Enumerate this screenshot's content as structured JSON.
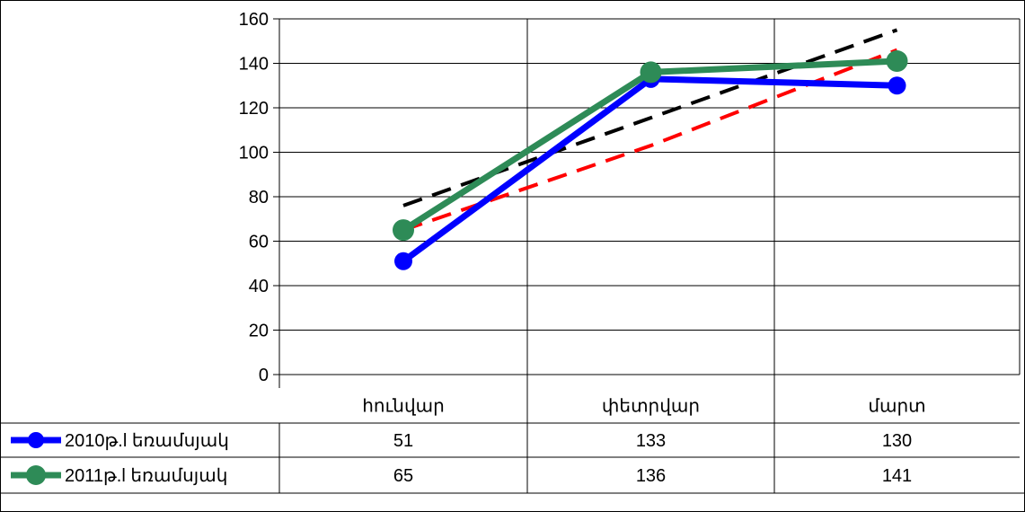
{
  "chart_data": {
    "type": "line",
    "title": "",
    "xlabel": "",
    "ylabel": "",
    "categories": [
      "հունվար",
      "փետրվար",
      "մարտ"
    ],
    "y_ticks": [
      "0",
      "20",
      "40",
      "60",
      "80",
      "100",
      "120",
      "140",
      "160"
    ],
    "ylim": [
      0,
      160
    ],
    "grid": true,
    "legend": "data-table",
    "series": [
      {
        "name": "2010թ.l եռամսյակ",
        "values": [
          51,
          133,
          130
        ],
        "color": "#0000ff"
      },
      {
        "name": "2011թ.l եռամսյակ",
        "values": [
          65,
          136,
          141
        ],
        "color": "#2e8b57"
      }
    ],
    "trendlines": [
      {
        "of_series": "2010թ.l եռամսյակ",
        "color": "#000000",
        "values": [
          76,
          115.5,
          155
        ]
      },
      {
        "of_series": "2011թ.l եռամսյակ",
        "color": "#ff0000",
        "values": [
          65,
          103,
          146
        ]
      }
    ],
    "table": {
      "rows": [
        {
          "label": "2010թ.l եռամսյակ",
          "values": [
            "51",
            "133",
            "130"
          ]
        },
        {
          "label": "2011թ.l եռամսյակ",
          "values": [
            "65",
            "136",
            "141"
          ]
        }
      ]
    }
  }
}
